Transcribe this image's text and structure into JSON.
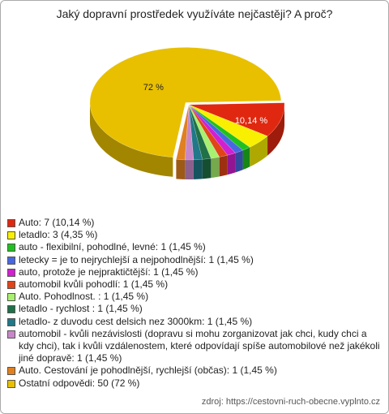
{
  "chart_data": {
    "type": "pie",
    "title": "Jaký dopravní prostředek využíváte nejčastěji? A proč?",
    "categories": [
      "Auto: 7 (10,14 %)",
      "letadlo: 3 (4,35 %)",
      "auto - flexibilní, pohodlné, levné: 1 (1,45 %)",
      "letecky = je to nejrychlejší a nejpohodlnější: 1 (1,45 %)",
      "auto, protože je nejpraktičtější: 1 (1,45 %)",
      "automobil kvůli pohodlí: 1 (1,45 %)",
      "Auto. Pohodlnost. : 1 (1,45 %)",
      "letadlo - rychlost : 1 (1,45 %)",
      "letadlo- z duvodu cest delsich nez 3000km: 1 (1,45 %)",
      "automobil - kvůli nezávislosti (dopravu si mohu zorganizovat jak chci, kudy chci a kdy chci), tak i kvůli vzdálenostem, které odpovídají spíše automobilové než jakékoli jiné dopravě: 1 (1,45 %)",
      "Auto. Cestování je pohodlnější, rychlejší (občas): 1 (1,45 %)",
      "Ostatní odpovědi: 50 (72 %)"
    ],
    "values": [
      10.14,
      4.35,
      1.45,
      1.45,
      1.45,
      1.45,
      1.45,
      1.45,
      1.45,
      1.45,
      1.45,
      72
    ],
    "value_labels": [
      "10,14 %",
      null,
      null,
      null,
      null,
      null,
      null,
      null,
      null,
      null,
      null,
      "72 %"
    ],
    "colors": [
      "#e02810",
      "#f8f000",
      "#20c020",
      "#4868e0",
      "#d020d0",
      "#e04418",
      "#a8f070",
      "#207048",
      "#207888",
      "#c888c8",
      "#e08020",
      "#e8c000"
    ],
    "source": "zdroj: https://cestovni-ruch-obecne.vyplnto.cz"
  }
}
